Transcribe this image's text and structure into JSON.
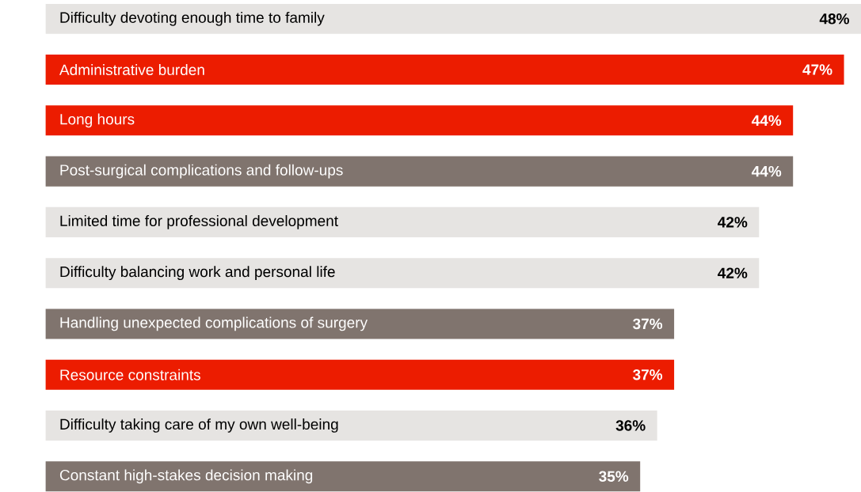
{
  "chart_data": {
    "type": "bar",
    "orientation": "horizontal",
    "categories": [
      "Difficulty devoting enough time to family",
      "Administrative burden",
      "Long hours",
      "Post-surgical complications and follow-ups",
      "Limited time for professional development",
      "Difficulty balancing work and personal life",
      "Handling unexpected complications of surgery",
      "Resource constraints",
      "Difficulty taking care of my own well-being",
      "Constant high-stakes decision making"
    ],
    "values": [
      48,
      47,
      44,
      44,
      42,
      42,
      37,
      37,
      36,
      35
    ],
    "colors": [
      "#e6e4e2",
      "#ec1c00",
      "#ec1c00",
      "#80746e",
      "#e6e4e2",
      "#e6e4e2",
      "#80746e",
      "#ec1c00",
      "#e6e4e2",
      "#80746e"
    ],
    "value_labels": [
      "48%",
      "47%",
      "44%",
      "44%",
      "42%",
      "42%",
      "37%",
      "37%",
      "36%",
      "35%"
    ]
  }
}
